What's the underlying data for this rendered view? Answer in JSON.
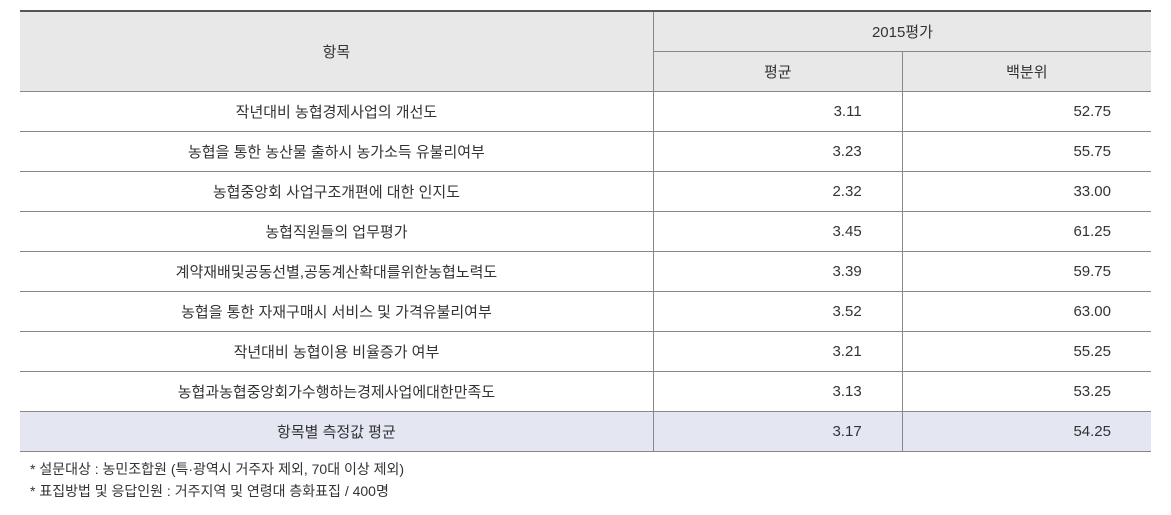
{
  "table": {
    "header": {
      "item_label": "항목",
      "year_label": "2015평가",
      "avg_label": "평균",
      "pct_label": "백분위"
    },
    "column_widths": {
      "item": "56%",
      "avg": "22%",
      "pct": "22%"
    },
    "rows": [
      {
        "item": "작년대비 농협경제사업의 개선도",
        "avg": "3.11",
        "pct": "52.75"
      },
      {
        "item": "농협을 통한 농산물 출하시 농가소득 유불리여부",
        "avg": "3.23",
        "pct": "55.75"
      },
      {
        "item": "농협중앙회 사업구조개편에 대한 인지도",
        "avg": "2.32",
        "pct": "33.00"
      },
      {
        "item": "농협직원들의 업무평가",
        "avg": "3.45",
        "pct": "61.25"
      },
      {
        "item": "계약재배및공동선별,공동계산확대를위한농협노력도",
        "avg": "3.39",
        "pct": "59.75"
      },
      {
        "item": "농협을 통한 자재구매시 서비스 및 가격유불리여부",
        "avg": "3.52",
        "pct": "63.00"
      },
      {
        "item": "작년대비 농협이용 비율증가 여부",
        "avg": "3.21",
        "pct": "55.25"
      },
      {
        "item": "농협과농협중앙회가수행하는경제사업에대한만족도",
        "avg": "3.13",
        "pct": "53.25"
      }
    ],
    "summary": {
      "item": "항목별 측정값 평균",
      "avg": "3.17",
      "pct": "54.25"
    },
    "colors": {
      "header_bg": "#e8e8e8",
      "summary_bg": "#e4e6f2",
      "border": "#888888",
      "top_border": "#555555",
      "text": "#333333"
    }
  },
  "footnotes": {
    "line1": "* 설문대상 : 농민조합원 (특·광역시 거주자 제외, 70대 이상 제외)",
    "line2": "* 표집방법 및 응답인원 : 거주지역 및 연령대 층화표집 / 400명"
  }
}
